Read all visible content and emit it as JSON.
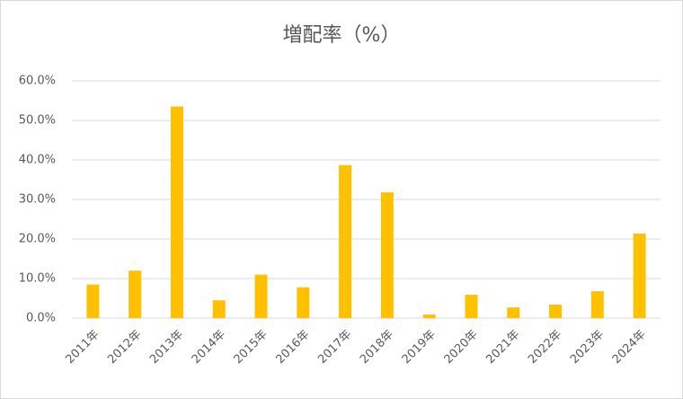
{
  "chart_data": {
    "type": "bar",
    "title": "増配率（%）",
    "categories": [
      "2011年",
      "2012年",
      "2013年",
      "2014年",
      "2015年",
      "2016年",
      "2017年",
      "2018年",
      "2019年",
      "2020年",
      "2021年",
      "2022年",
      "2023年",
      "2024年"
    ],
    "values": [
      8.5,
      12,
      53.5,
      4.5,
      11,
      7.8,
      38.7,
      31.8,
      0.9,
      5.9,
      2.7,
      3.4,
      6.8,
      21.4
    ],
    "color": "#ffc000",
    "ylim": [
      0,
      60
    ],
    "yticks": [
      {
        "value": 0,
        "label": "0.0%"
      },
      {
        "value": 10,
        "label": "10.0%"
      },
      {
        "value": 20,
        "label": "20.0%"
      },
      {
        "value": 30,
        "label": "30.0%"
      },
      {
        "value": 40,
        "label": "40.0%"
      },
      {
        "value": 50,
        "label": "50.0%"
      },
      {
        "value": 60,
        "label": "60.0%"
      }
    ],
    "grid": true
  }
}
